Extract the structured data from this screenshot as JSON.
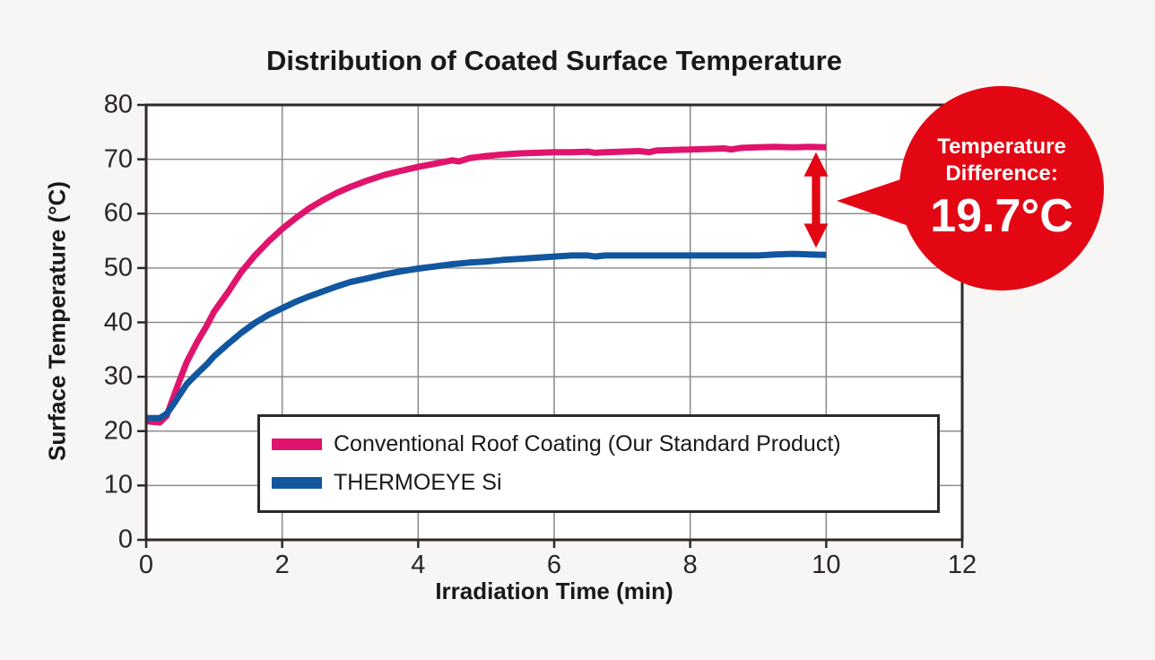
{
  "page": {
    "background_color": "#f7f6f5",
    "plot_background_color": "#ffffff",
    "grid_color": "#8d8d8d",
    "frame_color": "#2e2927"
  },
  "chart_data": {
    "type": "line",
    "title": "Distribution of Coated Surface Temperature",
    "xlabel": "Irradiation Time (min)",
    "ylabel": "Surface Temperature (°C)",
    "xlim": [
      0,
      12
    ],
    "ylim": [
      0,
      80
    ],
    "x_ticks": [
      0,
      2,
      4,
      6,
      8,
      10,
      12
    ],
    "y_ticks": [
      0,
      10,
      20,
      30,
      40,
      50,
      60,
      70,
      80
    ],
    "grid": true,
    "legend_position": "inside-lower-center",
    "series": [
      {
        "name": "Conventional Roof Coating (Our Standard Product)",
        "color": "#e0146c",
        "points": [
          [
            0,
            21.8
          ],
          [
            0.1,
            21.7
          ],
          [
            0.2,
            21.6
          ],
          [
            0.3,
            22.8
          ],
          [
            0.4,
            26.2
          ],
          [
            0.5,
            29.6
          ],
          [
            0.6,
            32.8
          ],
          [
            0.75,
            36.4
          ],
          [
            0.9,
            39.6
          ],
          [
            1,
            42
          ],
          [
            1.2,
            45.5
          ],
          [
            1.4,
            49.3
          ],
          [
            1.6,
            52.3
          ],
          [
            1.8,
            54.9
          ],
          [
            2,
            57.2
          ],
          [
            2.2,
            59.2
          ],
          [
            2.4,
            61
          ],
          [
            2.6,
            62.5
          ],
          [
            2.8,
            63.8
          ],
          [
            3,
            64.9
          ],
          [
            3.25,
            66.1
          ],
          [
            3.5,
            67.1
          ],
          [
            3.75,
            67.9
          ],
          [
            4,
            68.6
          ],
          [
            4.25,
            69.2
          ],
          [
            4.5,
            69.8
          ],
          [
            4.6,
            69.6
          ],
          [
            4.75,
            70.2
          ],
          [
            5,
            70.6
          ],
          [
            5.25,
            70.9
          ],
          [
            5.5,
            71.1
          ],
          [
            5.75,
            71.2
          ],
          [
            6,
            71.3
          ],
          [
            6.25,
            71.3
          ],
          [
            6.5,
            71.4
          ],
          [
            6.6,
            71.2
          ],
          [
            6.75,
            71.3
          ],
          [
            7,
            71.4
          ],
          [
            7.25,
            71.5
          ],
          [
            7.4,
            71.3
          ],
          [
            7.5,
            71.6
          ],
          [
            7.75,
            71.7
          ],
          [
            8,
            71.8
          ],
          [
            8.25,
            71.9
          ],
          [
            8.5,
            72
          ],
          [
            8.6,
            71.8
          ],
          [
            8.75,
            72.1
          ],
          [
            9,
            72.2
          ],
          [
            9.25,
            72.3
          ],
          [
            9.5,
            72.2
          ],
          [
            9.75,
            72.3
          ],
          [
            10,
            72.2
          ]
        ]
      },
      {
        "name": "THERMOEYE Si",
        "color": "#11569f",
        "points": [
          [
            0,
            22.4
          ],
          [
            0.1,
            22.4
          ],
          [
            0.2,
            22.4
          ],
          [
            0.3,
            23.2
          ],
          [
            0.4,
            24.9
          ],
          [
            0.5,
            26.8
          ],
          [
            0.6,
            28.7
          ],
          [
            0.75,
            30.6
          ],
          [
            0.9,
            32.4
          ],
          [
            1,
            33.8
          ],
          [
            1.2,
            36
          ],
          [
            1.4,
            38.1
          ],
          [
            1.6,
            39.9
          ],
          [
            1.8,
            41.4
          ],
          [
            2,
            42.6
          ],
          [
            2.2,
            43.8
          ],
          [
            2.4,
            44.8
          ],
          [
            2.6,
            45.7
          ],
          [
            2.8,
            46.6
          ],
          [
            3,
            47.4
          ],
          [
            3.25,
            48.1
          ],
          [
            3.5,
            48.8
          ],
          [
            3.75,
            49.4
          ],
          [
            4,
            49.9
          ],
          [
            4.25,
            50.3
          ],
          [
            4.5,
            50.7
          ],
          [
            4.75,
            51
          ],
          [
            5,
            51.2
          ],
          [
            5.25,
            51.5
          ],
          [
            5.5,
            51.7
          ],
          [
            5.75,
            51.9
          ],
          [
            6,
            52.1
          ],
          [
            6.25,
            52.3
          ],
          [
            6.5,
            52.3
          ],
          [
            6.6,
            52.1
          ],
          [
            6.75,
            52.3
          ],
          [
            7,
            52.3
          ],
          [
            7.5,
            52.3
          ],
          [
            8,
            52.3
          ],
          [
            8.5,
            52.3
          ],
          [
            9,
            52.3
          ],
          [
            9.25,
            52.5
          ],
          [
            9.5,
            52.6
          ],
          [
            9.75,
            52.5
          ],
          [
            10,
            52.4
          ]
        ]
      }
    ],
    "annotation": {
      "label_line1": "Temperature",
      "label_line2": "Difference:",
      "value": "19.7°C",
      "color": "#e30613",
      "arrow_x": 9.85,
      "arrow_top_value": 71.3,
      "arrow_bottom_value": 53.7
    }
  }
}
